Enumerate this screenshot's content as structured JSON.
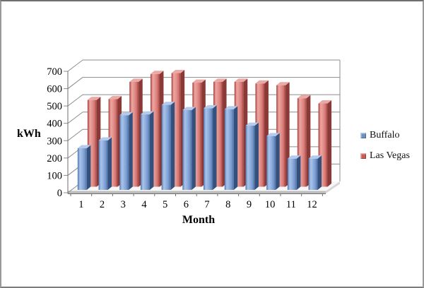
{
  "frame": {
    "background": "#ffffff",
    "border_color": "#9a9a9a"
  },
  "chart_data": {
    "type": "bar",
    "variant": "3d-clustered-column",
    "title": "",
    "xlabel": "Month",
    "ylabel": "kWh",
    "categories": [
      "1",
      "2",
      "3",
      "4",
      "5",
      "6",
      "7",
      "8",
      "9",
      "10",
      "11",
      "12"
    ],
    "series": [
      {
        "name": "Buffalo",
        "color": "#6d92c4",
        "values": [
          240,
          285,
          430,
          435,
          490,
          460,
          470,
          465,
          370,
          310,
          180,
          180
        ]
      },
      {
        "name": "Las Vegas",
        "color": "#cc5a55",
        "values": [
          500,
          505,
          605,
          650,
          655,
          600,
          605,
          605,
          595,
          585,
          510,
          480
        ]
      }
    ],
    "ylim": [
      0,
      700
    ],
    "y_tick_step": 100,
    "y_ticks": [
      "0",
      "100",
      "200",
      "300",
      "400",
      "500",
      "600",
      "700"
    ],
    "grid": true,
    "gridline_color": "#8c8c8c",
    "legend_position": "right"
  }
}
